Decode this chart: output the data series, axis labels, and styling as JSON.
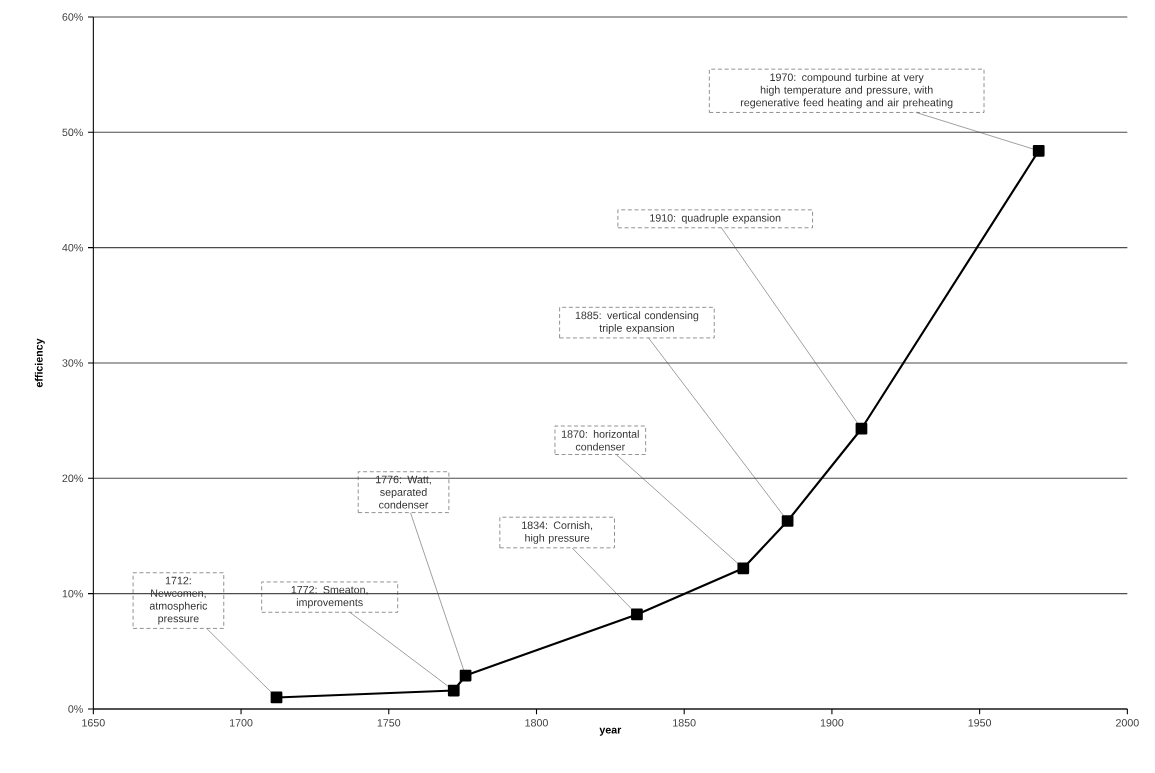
{
  "chart_data": {
    "type": "line",
    "xlabel": "year",
    "ylabel": "efficiency",
    "x": [
      1712,
      1772,
      1776,
      1834,
      1870,
      1885,
      1910,
      1970
    ],
    "series": [
      {
        "color": "#000000",
        "values": [
          1.0,
          1.6,
          2.9,
          8.2,
          12.2,
          16.3,
          24.3,
          48.4
        ]
      }
    ],
    "xlim": [
      1650,
      2000
    ],
    "xticks": [
      1650,
      1700,
      1750,
      1800,
      1850,
      1900,
      1950,
      2000
    ],
    "ylim": [
      0,
      60
    ],
    "yticks": [
      {
        "value": 0,
        "label": "0%"
      },
      {
        "value": 10,
        "label": "10%"
      },
      {
        "value": 20,
        "label": "20%"
      },
      {
        "value": 30,
        "label": "30%"
      },
      {
        "value": 40,
        "label": "40%"
      },
      {
        "value": 50,
        "label": "50%"
      },
      {
        "value": 60,
        "label": "60%"
      }
    ],
    "grid": "y",
    "marker": "square",
    "line_style": "solid",
    "annotations": [
      {
        "text": "1712: Newcomen, atmospheric pressure",
        "x": 1712,
        "y": 1.0
      },
      {
        "text": "1772: Smeaton, improvements",
        "x": 1772,
        "y": 1.6
      },
      {
        "text": "1776: Watt, separated condenser",
        "x": 1776,
        "y": 2.9
      },
      {
        "text": "1834: Cornish, high pressure",
        "x": 1834,
        "y": 8.2
      },
      {
        "text": "1870: horizontal condenser",
        "x": 1870,
        "y": 12.2
      },
      {
        "text": "1885: vertical condensing triple expansion",
        "x": 1885,
        "y": 16.3
      },
      {
        "text": "1910: quadruple expansion",
        "x": 1910,
        "y": 24.3
      },
      {
        "text": "1970: compound turbine at very high temperature and pressure, with regenerative feed heating and air preheating",
        "x": 1970,
        "y": 48.4
      }
    ]
  }
}
